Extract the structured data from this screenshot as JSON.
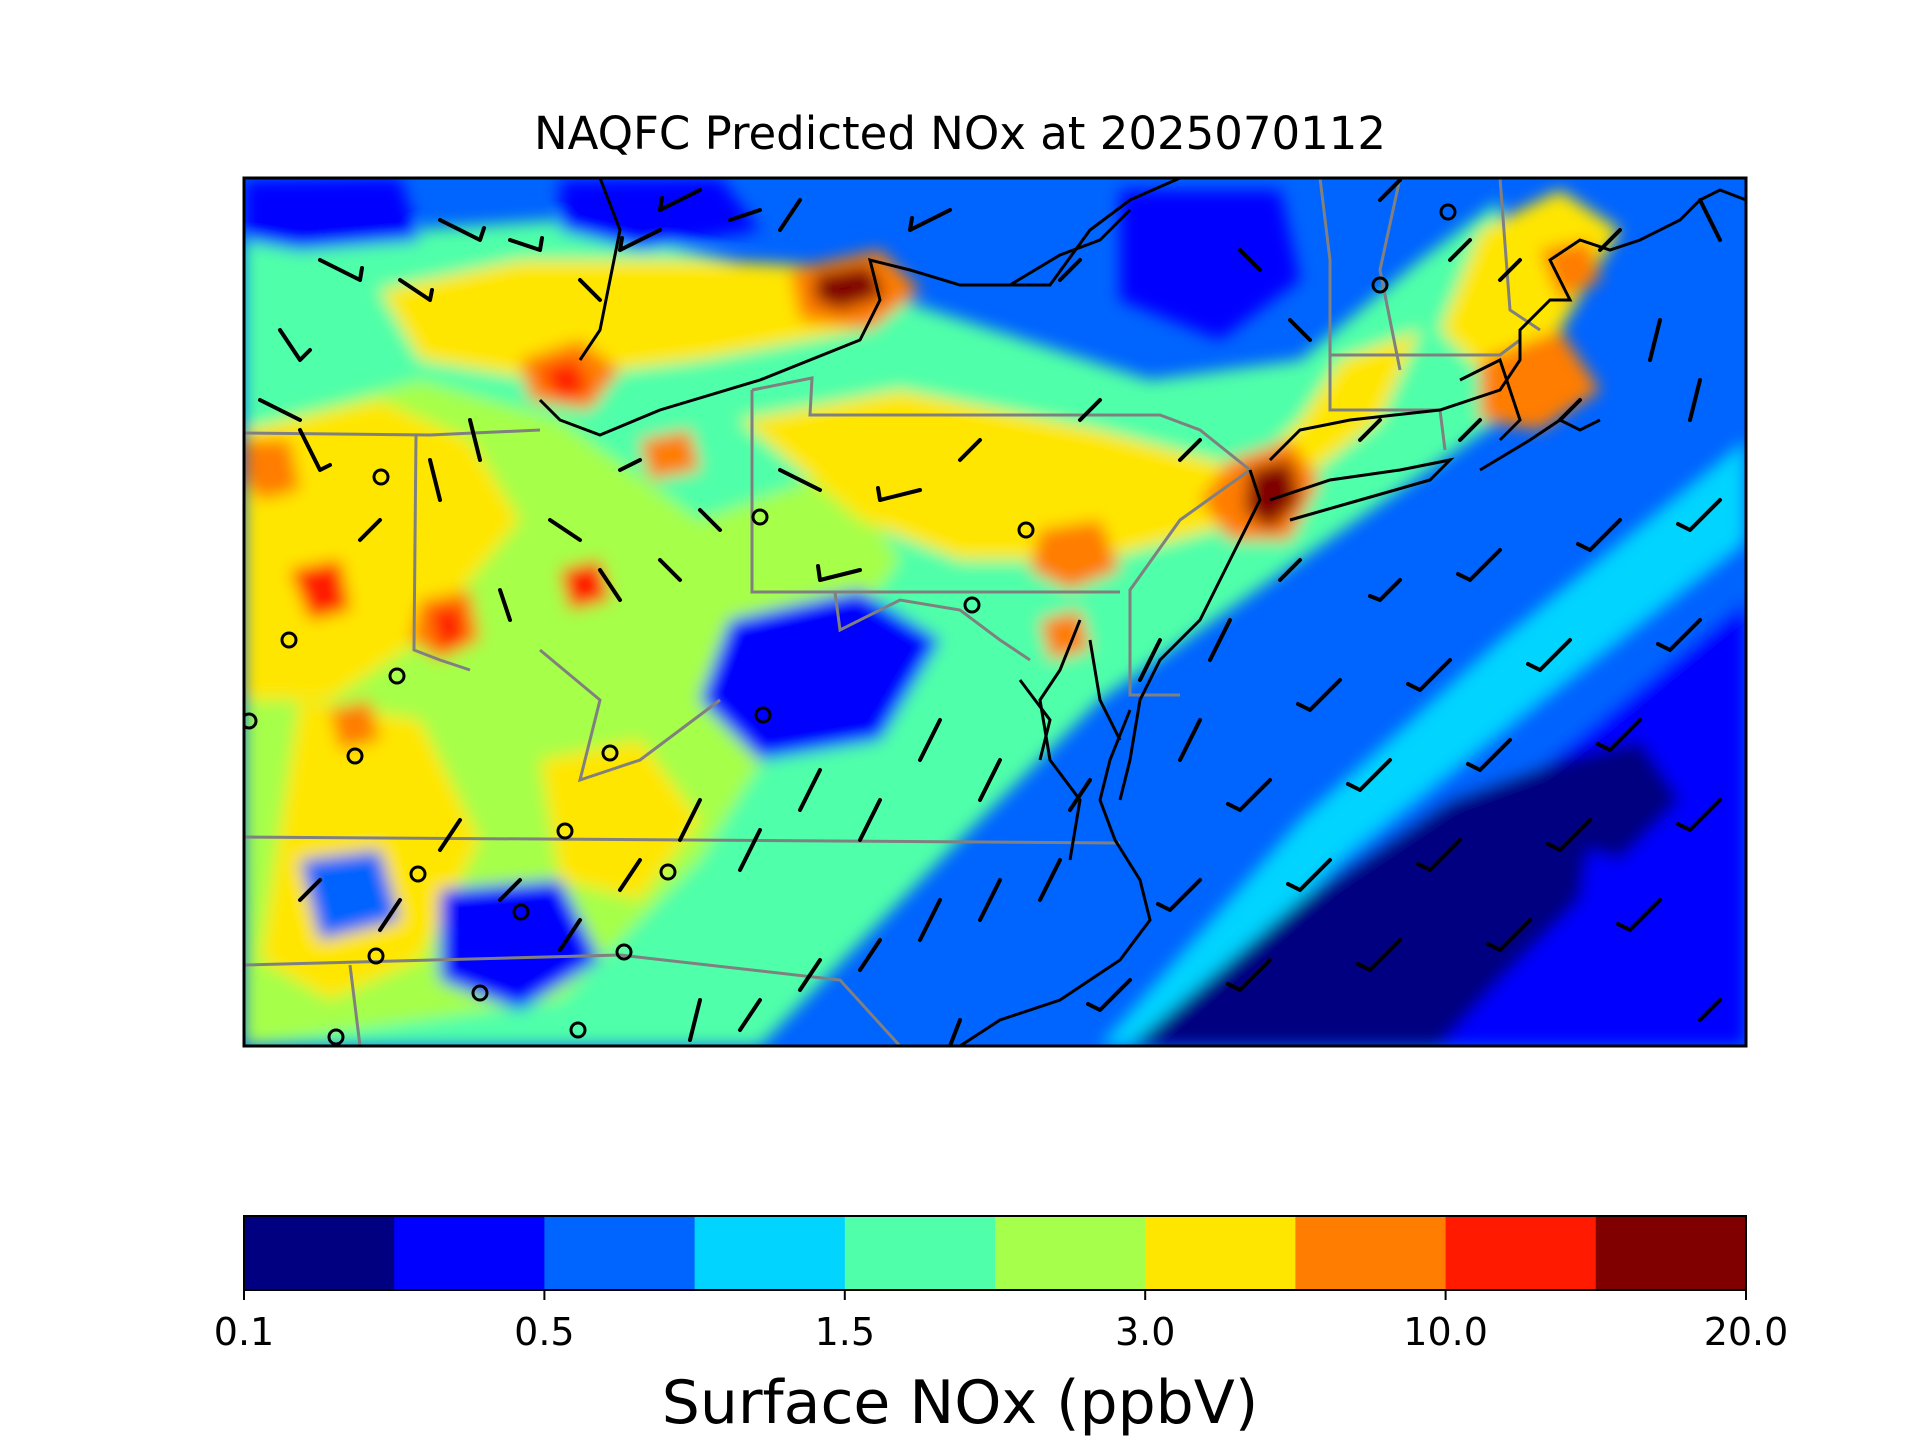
{
  "title": "NAQFC Predicted NOx at 2025070112",
  "colorbar": {
    "label": "Surface NOx (ppbV)",
    "bins": [
      {
        "color": "#000080"
      },
      {
        "color": "#0000ff"
      },
      {
        "color": "#0064ff"
      },
      {
        "color": "#00d4ff"
      },
      {
        "color": "#50ffa9"
      },
      {
        "color": "#a6ff4a"
      },
      {
        "color": "#ffe600"
      },
      {
        "color": "#ff7d00"
      },
      {
        "color": "#ff1a00"
      },
      {
        "color": "#800000"
      }
    ],
    "tick_labels": [
      "0.1",
      "0.5",
      "1.5",
      "3.0",
      "10.0",
      "20.0"
    ]
  },
  "colors": {
    "state_borders": "#808080",
    "coastline": "#000000",
    "wind_barbs": "#000000"
  }
}
